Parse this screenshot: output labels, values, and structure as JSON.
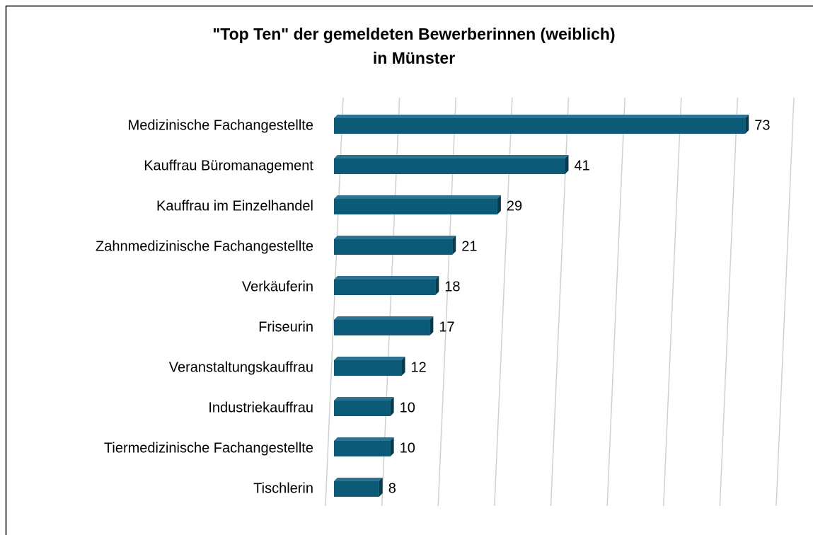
{
  "chart_data": {
    "type": "bar",
    "orientation": "horizontal",
    "title": [
      "\"Top Ten\" der gemeldeten Bewerberinnen (weiblich)",
      "in Münster"
    ],
    "categories": [
      "Medizinische Fachangestellte",
      "Kauffrau Büromanagement",
      "Kauffrau im Einzelhandel",
      "Zahnmedizinische Fachangestellte",
      "Verkäuferin",
      "Friseurin",
      "Veranstaltungskauffrau",
      "Industriekauffrau",
      "Tiermedizinische Fachangestellte",
      "Tischlerin"
    ],
    "values": [
      73,
      41,
      29,
      21,
      18,
      17,
      12,
      10,
      10,
      8
    ],
    "color": "#0b5a78",
    "xlim": [
      0,
      80
    ],
    "xticks": [
      0,
      10,
      20,
      30,
      40,
      50,
      60,
      70,
      80
    ],
    "grid": true
  }
}
